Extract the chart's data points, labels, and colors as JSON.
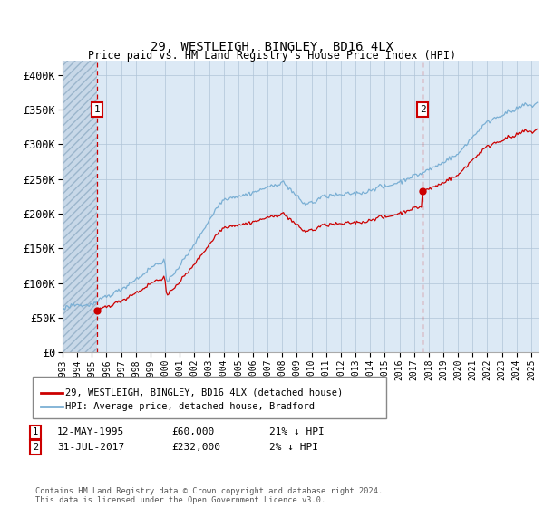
{
  "title": "29, WESTLEIGH, BINGLEY, BD16 4LX",
  "subtitle": "Price paid vs. HM Land Registry's House Price Index (HPI)",
  "sale1_date": "12-MAY-1995",
  "sale1_price": 60000,
  "sale1_year": 1995.36,
  "sale2_date": "31-JUL-2017",
  "sale2_price": 232000,
  "sale2_year": 2017.58,
  "sale1_note": "21% ↓ HPI",
  "sale2_note": "2% ↓ HPI",
  "legend_label_red": "29, WESTLEIGH, BINGLEY, BD16 4LX (detached house)",
  "legend_label_blue": "HPI: Average price, detached house, Bradford",
  "footer": "Contains HM Land Registry data © Crown copyright and database right 2024.\nThis data is licensed under the Open Government Licence v3.0.",
  "ylim": [
    0,
    420000
  ],
  "yticks": [
    0,
    50000,
    100000,
    150000,
    200000,
    250000,
    300000,
    350000,
    400000
  ],
  "xlim_start": 1993.0,
  "xlim_end": 2025.5,
  "hatch_end_year": 1995.36,
  "background_plot": "#dce9f5",
  "background_hatch": "#c8d8e8",
  "grid_color": "#b0c4d8",
  "red_color": "#cc0000",
  "blue_color": "#7aafd4",
  "xticks": [
    1993,
    1994,
    1995,
    1996,
    1997,
    1998,
    1999,
    2000,
    2001,
    2002,
    2003,
    2004,
    2005,
    2006,
    2007,
    2008,
    2009,
    2010,
    2011,
    2012,
    2013,
    2014,
    2015,
    2016,
    2017,
    2018,
    2019,
    2020,
    2021,
    2022,
    2023,
    2024,
    2025
  ]
}
